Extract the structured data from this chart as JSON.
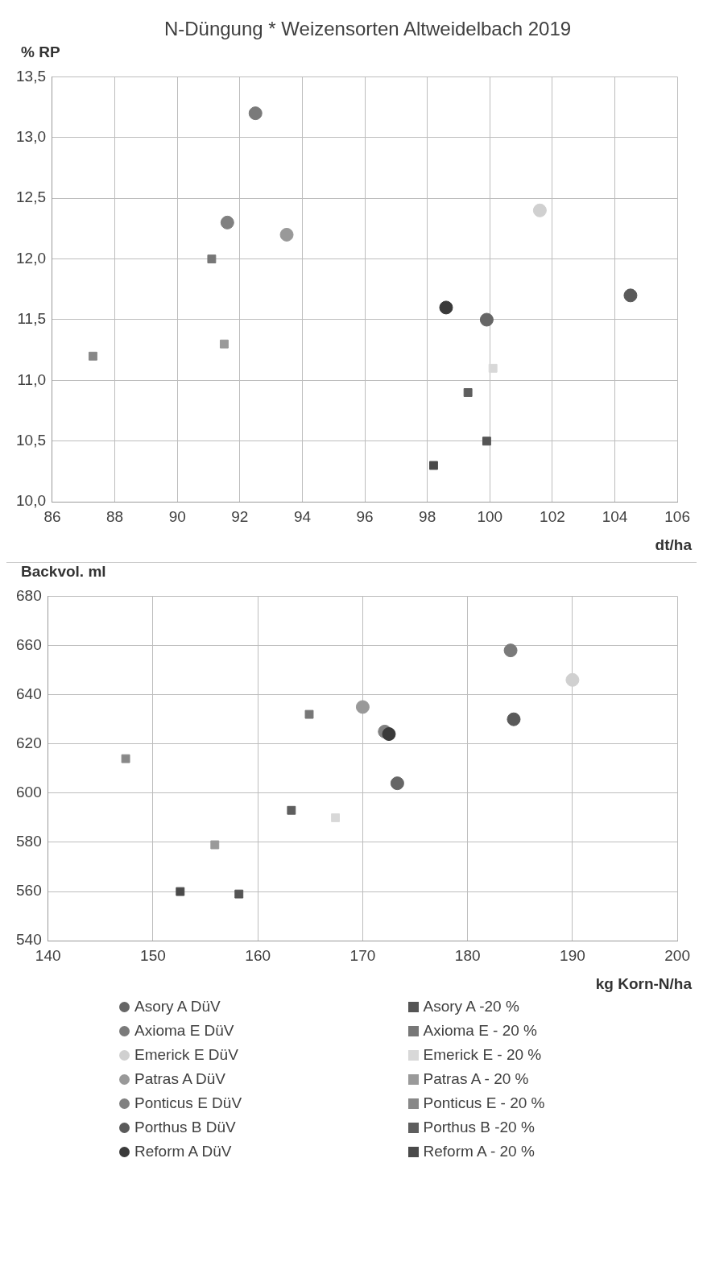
{
  "chart_data": [
    {
      "type": "scatter",
      "title": "N-Düngung * Weizensorten Altweidelbach 2019",
      "xlabel": "dt/ha",
      "ylabel": "% RP",
      "xlim": [
        86,
        106
      ],
      "xticks": [
        86,
        88,
        90,
        92,
        94,
        96,
        98,
        100,
        102,
        104,
        106
      ],
      "ylim": [
        10,
        13.5
      ],
      "yticks": [
        {
          "value": 10,
          "label": "10,0"
        },
        {
          "value": 10.5,
          "label": "10,5"
        },
        {
          "value": 11,
          "label": "11,0"
        },
        {
          "value": 11.5,
          "label": "11,5"
        },
        {
          "value": 12,
          "label": "12,0"
        },
        {
          "value": 12.5,
          "label": "12,5"
        },
        {
          "value": 13,
          "label": "13,0"
        },
        {
          "value": 13.5,
          "label": "13,5"
        }
      ],
      "grid": true,
      "legend": false,
      "series": [
        {
          "color": "#666666",
          "marker": "circle",
          "x": [
            99.9
          ],
          "values": [
            11.5
          ]
        },
        {
          "color": "#555555",
          "marker": "square",
          "x": [
            99.9
          ],
          "values": [
            10.5
          ]
        },
        {
          "color": "#7a7a7a",
          "marker": "circle",
          "x": [
            92.5
          ],
          "values": [
            13.2
          ]
        },
        {
          "color": "#777777",
          "marker": "square",
          "x": [
            91.1
          ],
          "values": [
            12.0
          ]
        },
        {
          "color": "#d0d0d0",
          "marker": "circle",
          "x": [
            101.6
          ],
          "values": [
            12.4
          ]
        },
        {
          "color": "#d8d8d8",
          "marker": "square",
          "x": [
            100.1
          ],
          "values": [
            11.1
          ]
        },
        {
          "color": "#999999",
          "marker": "circle",
          "x": [
            93.5
          ],
          "values": [
            12.2
          ]
        },
        {
          "color": "#9a9a9a",
          "marker": "square",
          "x": [
            91.5
          ],
          "values": [
            11.3
          ]
        },
        {
          "color": "#808080",
          "marker": "circle",
          "x": [
            91.6
          ],
          "values": [
            12.3
          ]
        },
        {
          "color": "#888888",
          "marker": "square",
          "x": [
            87.3
          ],
          "values": [
            11.2
          ]
        },
        {
          "color": "#5a5a5a",
          "marker": "circle",
          "x": [
            104.5
          ],
          "values": [
            11.7
          ]
        },
        {
          "color": "#5e5e5e",
          "marker": "square",
          "x": [
            99.3
          ],
          "values": [
            10.9
          ]
        },
        {
          "color": "#3a3a3a",
          "marker": "circle",
          "x": [
            98.6
          ],
          "values": [
            11.6
          ]
        },
        {
          "color": "#4a4a4a",
          "marker": "square",
          "x": [
            98.2
          ],
          "values": [
            10.3
          ]
        }
      ]
    },
    {
      "type": "scatter",
      "xlabel": "kg Korn-N/ha",
      "ylabel": "Backvol. ml",
      "xlim": [
        140,
        200
      ],
      "xticks": [
        140,
        150,
        160,
        170,
        180,
        190,
        200
      ],
      "ylim": [
        540,
        680
      ],
      "yticks": [
        540,
        560,
        580,
        600,
        620,
        640,
        660,
        680
      ],
      "grid": true,
      "legend": "bottom",
      "series": [
        {
          "name": "Asory A DüV",
          "color": "#666666",
          "marker": "circle",
          "x": [
            173.3
          ],
          "values": [
            604
          ]
        },
        {
          "name": "Asory A -20 %",
          "color": "#555555",
          "marker": "square",
          "x": [
            158.2
          ],
          "values": [
            559
          ]
        },
        {
          "name": "Axioma E DüV",
          "color": "#7a7a7a",
          "marker": "circle",
          "x": [
            184.1
          ],
          "values": [
            658
          ]
        },
        {
          "name": "Axioma E - 20 %",
          "color": "#777777",
          "marker": "square",
          "x": [
            164.9
          ],
          "values": [
            632
          ]
        },
        {
          "name": "Emerick E DüV",
          "color": "#d0d0d0",
          "marker": "circle",
          "x": [
            190.0
          ],
          "values": [
            646
          ]
        },
        {
          "name": "Emerick E - 20 %",
          "color": "#d8d8d8",
          "marker": "square",
          "x": [
            167.4
          ],
          "values": [
            590
          ]
        },
        {
          "name": "Patras A DüV",
          "color": "#999999",
          "marker": "circle",
          "x": [
            170.0
          ],
          "values": [
            635
          ]
        },
        {
          "name": "Patras A - 20 %",
          "color": "#9a9a9a",
          "marker": "square",
          "x": [
            155.9
          ],
          "values": [
            579
          ]
        },
        {
          "name": "Ponticus E DüV",
          "color": "#808080",
          "marker": "circle",
          "x": [
            172.1
          ],
          "values": [
            625
          ]
        },
        {
          "name": "Ponticus E - 20 %",
          "color": "#888888",
          "marker": "square",
          "x": [
            147.4
          ],
          "values": [
            614
          ]
        },
        {
          "name": "Porthus B DüV",
          "color": "#5a5a5a",
          "marker": "circle",
          "x": [
            184.4
          ],
          "values": [
            630
          ]
        },
        {
          "name": "Porthus B -20 %",
          "color": "#5e5e5e",
          "marker": "square",
          "x": [
            163.2
          ],
          "values": [
            593
          ]
        },
        {
          "name": "Reform A DüV",
          "color": "#3a3a3a",
          "marker": "circle",
          "x": [
            172.5
          ],
          "values": [
            624
          ]
        },
        {
          "name": "Reform A - 20 %",
          "color": "#4a4a4a",
          "marker": "square",
          "x": [
            152.6
          ],
          "values": [
            560
          ]
        }
      ]
    }
  ]
}
